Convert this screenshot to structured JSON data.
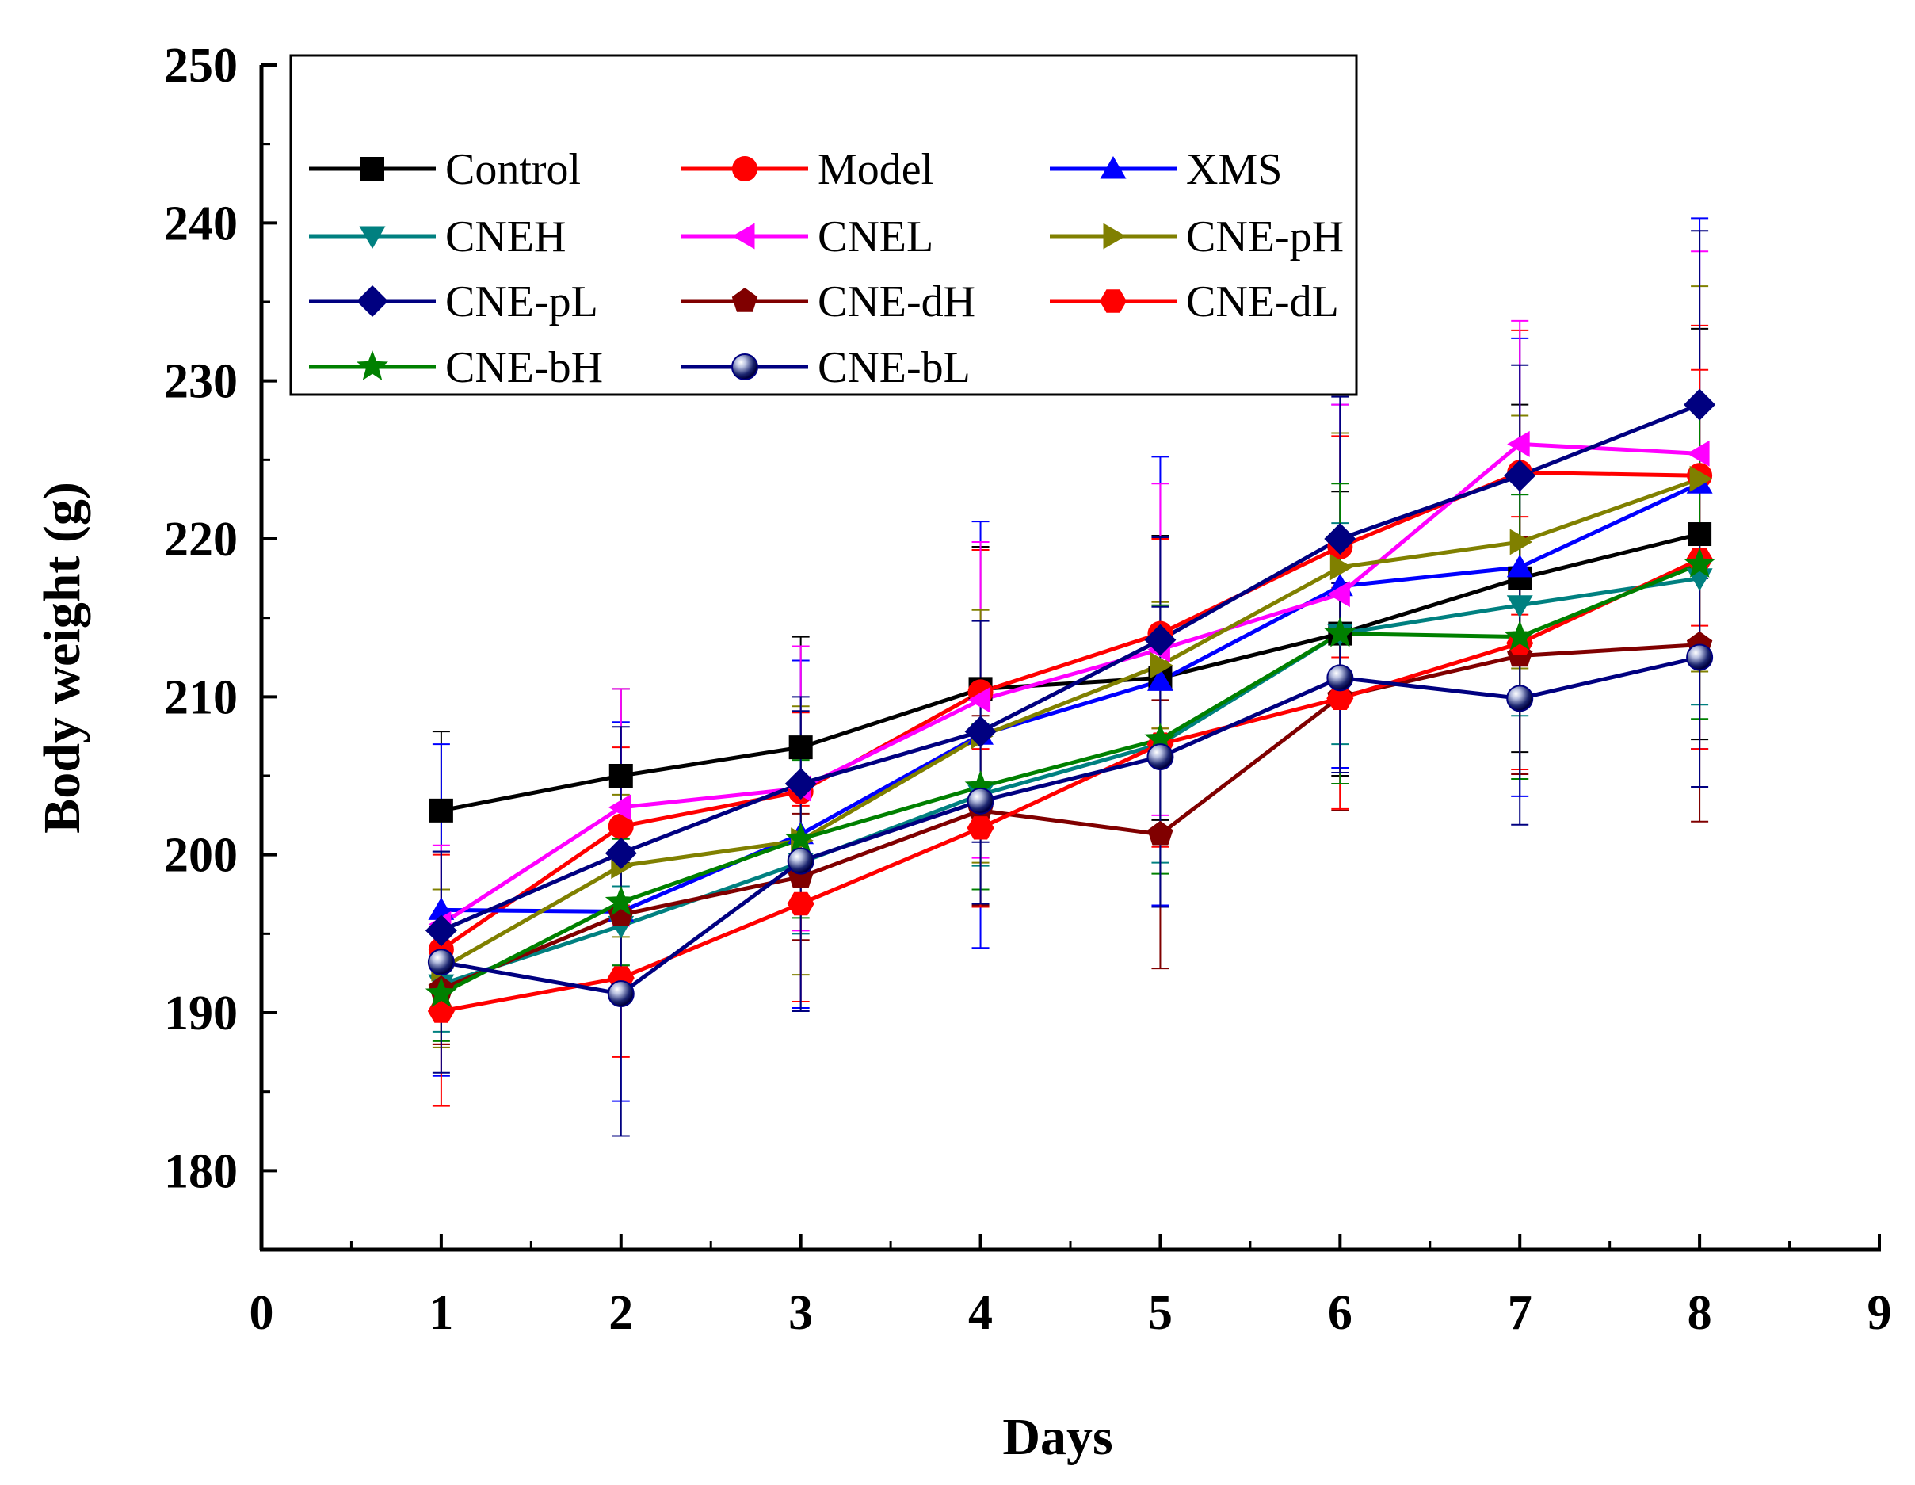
{
  "chart_data": {
    "type": "line",
    "title": "",
    "xlabel": "Days",
    "ylabel": "Body weight (g)",
    "xlim": [
      0,
      9
    ],
    "ylim": [
      175,
      250
    ],
    "xticks": [
      0,
      1,
      2,
      3,
      4,
      5,
      6,
      7,
      8,
      9
    ],
    "yticks": [
      180,
      190,
      200,
      210,
      220,
      230,
      240,
      250
    ],
    "grid": false,
    "legend_position": "top-left",
    "x": [
      1,
      2,
      3,
      4,
      5,
      6,
      7,
      8
    ],
    "series": [
      {
        "name": "Control",
        "color": "#000000",
        "marker": "square",
        "values": [
          202.8,
          205.0,
          206.8,
          210.5,
          211.2,
          214.0,
          217.5,
          220.3
        ],
        "errors": [
          5.0,
          5.5,
          7.0,
          9.0,
          9.0,
          9.0,
          11.0,
          13.0
        ]
      },
      {
        "name": "Model",
        "color": "#ff0000",
        "marker": "circle",
        "values": [
          194.0,
          201.8,
          204.0,
          210.3,
          214.0,
          219.5,
          224.2,
          224.0
        ],
        "errors": [
          6.0,
          5.0,
          5.0,
          9.0,
          6.0,
          7.0,
          9.0,
          9.5
        ]
      },
      {
        "name": "XMS",
        "color": "#0000ff",
        "marker": "triangle-up",
        "values": [
          196.5,
          196.4,
          201.3,
          207.6,
          211.0,
          217.0,
          218.2,
          223.5
        ],
        "errors": [
          10.5,
          12.0,
          11.0,
          13.5,
          14.2,
          11.5,
          14.5,
          16.8
        ]
      },
      {
        "name": "CNEH",
        "color": "#008080",
        "marker": "triangle-down",
        "values": [
          191.8,
          195.5,
          199.5,
          203.8,
          207.0,
          214.0,
          215.8,
          217.5
        ],
        "errors": [
          3.0,
          2.5,
          4.5,
          4.5,
          7.5,
          7.0,
          7.0,
          8.0
        ]
      },
      {
        "name": "CNEL",
        "color": "#ff00ff",
        "marker": "triangle-left",
        "values": [
          195.6,
          203.0,
          204.2,
          209.8,
          213.0,
          216.5,
          226.0,
          225.4
        ],
        "errors": [
          5.0,
          7.5,
          9.0,
          10.0,
          10.5,
          12.0,
          7.8,
          12.8
        ]
      },
      {
        "name": "CNE-pH",
        "color": "#808000",
        "marker": "triangle-right",
        "values": [
          192.8,
          199.3,
          200.9,
          207.5,
          212.0,
          218.2,
          219.8,
          223.8
        ],
        "errors": [
          5.0,
          4.5,
          8.5,
          8.0,
          4.0,
          8.5,
          8.0,
          12.2
        ]
      },
      {
        "name": "CNE-pL",
        "color": "#000080",
        "marker": "diamond",
        "values": [
          195.2,
          200.1,
          204.5,
          207.8,
          213.6,
          220.0,
          224.0,
          228.5
        ],
        "errors": [
          5.0,
          8.0,
          5.5,
          7.0,
          6.5,
          9.0,
          7.0,
          11.0
        ]
      },
      {
        "name": "CNE-dH",
        "color": "#800000",
        "marker": "pentagon",
        "values": [
          191.5,
          196.2,
          198.6,
          202.8,
          201.3,
          210.0,
          212.6,
          213.3
        ],
        "errors": [
          3.5,
          3.5,
          4.0,
          6.0,
          8.5,
          7.2,
          7.5,
          11.2
        ]
      },
      {
        "name": "CNE-dL",
        "color": "#ff0000",
        "marker": "hexagon",
        "values": [
          190.1,
          192.2,
          196.9,
          201.7,
          207.0,
          209.9,
          213.4,
          218.7
        ],
        "errors": [
          6.0,
          5.0,
          6.2,
          5.0,
          6.5,
          7.0,
          8.0,
          12.0
        ]
      },
      {
        "name": "CNE-bH",
        "color": "#008000",
        "marker": "star",
        "values": [
          191.2,
          197.0,
          201.0,
          204.3,
          207.3,
          214.0,
          213.8,
          218.4
        ],
        "errors": [
          3.0,
          4.0,
          5.0,
          6.5,
          8.5,
          9.5,
          9.0,
          9.8
        ]
      },
      {
        "name": "CNE-bL",
        "color": "#000080",
        "marker": "circle-sphere",
        "values": [
          193.2,
          191.2,
          199.6,
          203.4,
          206.2,
          211.2,
          209.9,
          212.5
        ],
        "errors": [
          7.0,
          9.0,
          9.5,
          6.5,
          9.5,
          6.0,
          8.0,
          8.2
        ]
      }
    ]
  }
}
